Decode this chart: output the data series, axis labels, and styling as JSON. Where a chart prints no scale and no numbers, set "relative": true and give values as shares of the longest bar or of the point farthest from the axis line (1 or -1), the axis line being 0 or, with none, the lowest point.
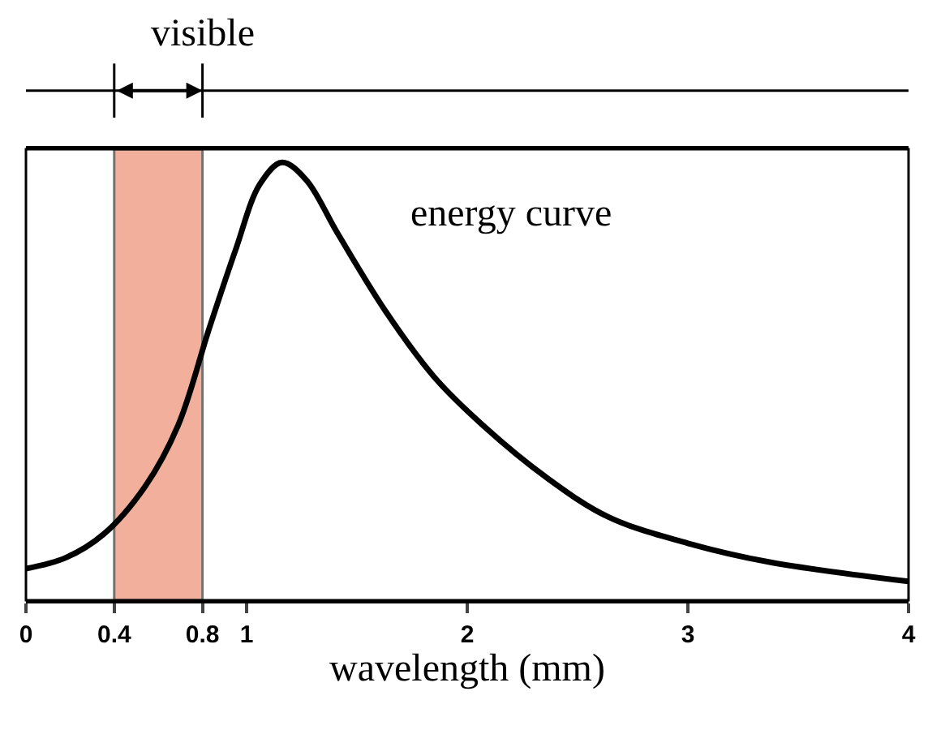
{
  "chart_data": {
    "type": "line",
    "relative": true,
    "xlabel": "wavelength (mm)",
    "x": [
      0,
      0.18,
      0.35,
      0.54,
      0.69,
      0.83,
      0.95,
      1.06,
      1.16,
      1.27,
      1.41,
      1.63,
      1.85,
      2.07,
      2.36,
      2.64,
      3.0,
      3.37,
      4.0
    ],
    "series": [
      {
        "name": "energy curve",
        "color": "#000000",
        "values": [
          0.072,
          0.097,
          0.15,
          0.26,
          0.4,
          0.62,
          0.8,
          0.95,
          1.0,
          0.96,
          0.84,
          0.66,
          0.51,
          0.4,
          0.28,
          0.19,
          0.13,
          0.087,
          0.043
        ]
      }
    ],
    "xlim": [
      0,
      4
    ],
    "xticks": [
      0,
      0.4,
      0.8,
      1,
      2,
      3,
      4
    ],
    "bands": [
      {
        "axis": "x",
        "from": 0.4,
        "to": 0.8,
        "label": "visible",
        "color": "#e8704c"
      }
    ],
    "grid": false,
    "legend": false,
    "marker": "none",
    "line_style": "solid"
  }
}
